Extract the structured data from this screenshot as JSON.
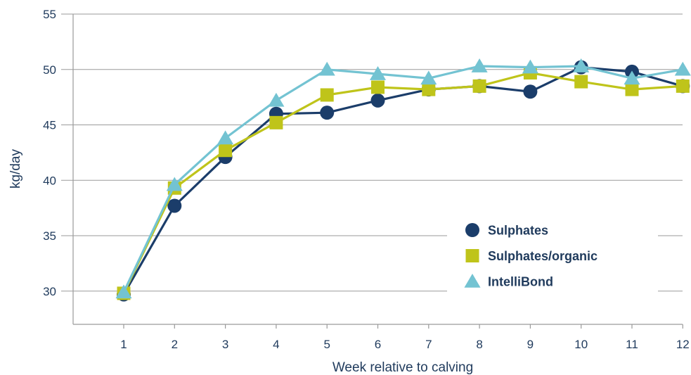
{
  "chart_data": {
    "type": "line",
    "title": "",
    "xlabel": "Week relative to calving",
    "ylabel": "kg/day",
    "x": [
      1,
      2,
      3,
      4,
      5,
      6,
      7,
      8,
      9,
      10,
      11,
      12
    ],
    "ylim": [
      27,
      55
    ],
    "yticks": [
      30,
      35,
      40,
      45,
      50,
      55
    ],
    "grid": true,
    "legend_position": "bottom-right",
    "series": [
      {
        "name": "Sulphates",
        "marker": "circle",
        "color": "#1b3d6a",
        "values": [
          29.7,
          37.7,
          42.1,
          46.0,
          46.1,
          47.2,
          48.2,
          48.5,
          48.0,
          50.2,
          49.8,
          48.5
        ]
      },
      {
        "name": "Sulphates/organic",
        "marker": "square",
        "color": "#bfc41a",
        "values": [
          29.8,
          39.3,
          42.7,
          45.2,
          47.7,
          48.4,
          48.2,
          48.5,
          49.7,
          48.9,
          48.2,
          48.5
        ]
      },
      {
        "name": "IntelliBond",
        "marker": "triangle",
        "color": "#73c3d2",
        "values": [
          29.9,
          39.6,
          43.8,
          47.2,
          50.0,
          49.6,
          49.2,
          50.3,
          50.2,
          50.3,
          49.2,
          50.0
        ]
      }
    ]
  }
}
